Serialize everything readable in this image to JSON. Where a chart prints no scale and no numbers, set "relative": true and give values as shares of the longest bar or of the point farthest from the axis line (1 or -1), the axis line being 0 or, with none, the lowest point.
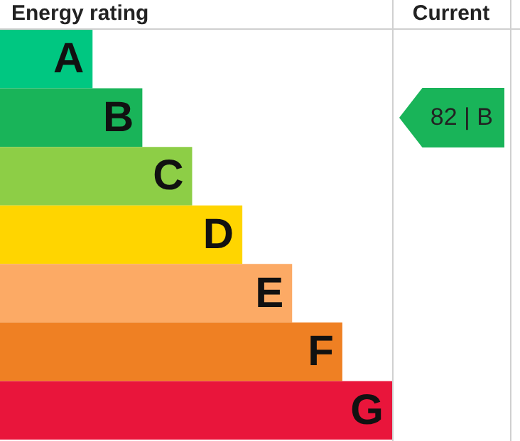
{
  "chart_data": {
    "type": "bar",
    "title": "Energy rating",
    "orientation": "horizontal",
    "relative": true,
    "categories": [
      "A",
      "B",
      "C",
      "D",
      "E",
      "F",
      "G"
    ],
    "values": [
      0.236,
      0.363,
      0.49,
      0.618,
      0.745,
      0.873,
      1
    ],
    "colors": [
      "#00c781",
      "#19b459",
      "#8dce46",
      "#ffd500",
      "#fcaa65",
      "#ef8023",
      "#e9153b"
    ],
    "annotations": [
      "Current",
      "82 | B"
    ]
  }
}
